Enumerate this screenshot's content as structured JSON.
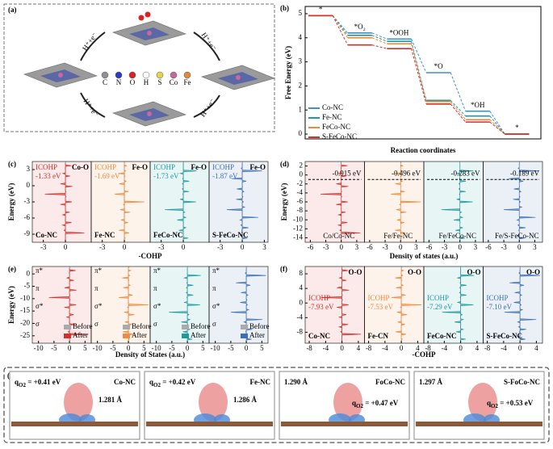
{
  "a": {
    "label": "(a)",
    "atoms": [
      "C",
      "N",
      "O",
      "H",
      "S",
      "Co",
      "Fe"
    ],
    "steps": [
      "H⁺+e⁻",
      "H⁺+e⁻",
      "H⁺+e⁻",
      "H⁺+e⁻"
    ]
  },
  "b": {
    "label": "(b)",
    "ylabel": "Free Energy (eV)",
    "xlabel": "Reaction coordinates",
    "ylim": [
      -0.2,
      5.3
    ],
    "yticks": [
      0,
      1,
      2,
      3,
      4,
      5
    ],
    "states": [
      "*",
      "*O₂",
      "*OOH",
      "*O",
      "*OH",
      "*"
    ],
    "series": [
      {
        "name": "Co-NC",
        "color": "#3f8fcf",
        "values": [
          4.92,
          4.2,
          3.95,
          2.55,
          0.95,
          0
        ]
      },
      {
        "name": "Fe-NC",
        "color": "#1c9aa0",
        "values": [
          4.92,
          4.1,
          3.85,
          1.4,
          0.75,
          0
        ]
      },
      {
        "name": "FeCo-NC",
        "color": "#f08a3c",
        "values": [
          4.92,
          4.0,
          3.75,
          1.35,
          0.6,
          0
        ]
      },
      {
        "name": "S-FeCo-NC",
        "color": "#d4302b",
        "values": [
          4.92,
          3.7,
          3.55,
          1.25,
          0.5,
          0
        ]
      }
    ]
  },
  "c": {
    "label": "(c)",
    "ylabel": "Energy (eV)",
    "xlabel": "-COHP",
    "ylim": [
      -10.5,
      4.5
    ],
    "yticks": [
      3,
      0,
      -3,
      -6,
      -9
    ],
    "sub_xlim": [
      -4.5,
      3.5
    ],
    "subs": [
      {
        "color": "#d4302b",
        "tag": "ICOHP",
        "value": "-1.33 eV",
        "bond": "Co-O",
        "name": "Co-NC",
        "xticks": [
          -3,
          0
        ]
      },
      {
        "color": "#f08a3c",
        "tag": "ICOHP",
        "value": "-1.69 eV",
        "bond": "Fe-O",
        "name": "Fe-NC",
        "xticks": [
          -3,
          0
        ]
      },
      {
        "color": "#1c9aa0",
        "tag": "ICOHP",
        "value": "-1.73 eV",
        "bond": "Fe-O",
        "name": "FeCo-NC",
        "xticks": [
          -3,
          0
        ]
      },
      {
        "color": "#3a6fb5",
        "tag": "ICOHP",
        "value": "-1.87 eV",
        "bond": "Fe-O",
        "name": "S-FeCo-NC",
        "xticks": [
          -3,
          0,
          3
        ]
      }
    ]
  },
  "d": {
    "label": "(d)",
    "ylabel": "Energy (eV)",
    "xlabel": "Density of states (a.u.)",
    "ylim": [
      -15,
      3
    ],
    "yticks": [
      2,
      0,
      -2,
      -4,
      -6,
      -8,
      -10,
      -12,
      -14
    ],
    "sub_xlim": [
      -7,
      4.5
    ],
    "subs": [
      {
        "color": "#d4302b",
        "value": "-0.915 eV",
        "name": "Co/Co-NC",
        "xticks": [
          -6,
          -3,
          0,
          3
        ]
      },
      {
        "color": "#f08a3c",
        "value": "-0.496 eV",
        "name": "Fe/Fe-NC",
        "xticks": [
          -6,
          -3,
          0,
          3
        ]
      },
      {
        "color": "#1c9aa0",
        "value": "-0.283 eV",
        "name": "Fe/FeCo-NC",
        "xticks": [
          -6,
          -3,
          0,
          3
        ]
      },
      {
        "color": "#3a6fb5",
        "value": "-0.189 eV",
        "name": "Fe/S-FeCo-NC",
        "xticks": [
          -6,
          -3,
          0,
          3
        ]
      }
    ]
  },
  "e": {
    "label": "(e)",
    "ylabel": "Energy (eV)",
    "xlabel": "Density of States (a.u.)",
    "ylim": [
      -28,
      3
    ],
    "yticks": [
      0,
      -5,
      -10,
      -15,
      -20,
      -25
    ],
    "sub_xlim": [
      -12,
      7
    ],
    "subs": [
      {
        "color": "#d4302b",
        "orbitals": [
          "π*",
          "π",
          "σ*",
          "σ"
        ],
        "before": "Before",
        "after": "After",
        "xticks": [
          -10,
          -5,
          0,
          5
        ]
      },
      {
        "color": "#f08a3c",
        "orbitals": [
          "π*",
          "π",
          "σ*",
          "σ"
        ],
        "before": "Before",
        "after": "After",
        "xticks": [
          -10,
          -5,
          0,
          5
        ]
      },
      {
        "color": "#1c9aa0",
        "orbitals": [
          "π*",
          "π",
          "σ*",
          "σ"
        ],
        "before": "Before",
        "after": "After",
        "xticks": [
          -10,
          -5,
          0,
          5
        ]
      },
      {
        "color": "#3a6fb5",
        "orbitals": [
          "π*",
          "π",
          "σ*",
          "σ"
        ],
        "before": "Before",
        "after": "After",
        "xticks": [
          -10,
          -5,
          0,
          5
        ]
      }
    ]
  },
  "f": {
    "label": "(f)",
    "xlabel": "-COHP",
    "ylim": [
      -11,
      10
    ],
    "yticks": [
      8,
      4,
      0,
      -4,
      -8
    ],
    "sub_xlim": [
      -9,
      5.5
    ],
    "subs": [
      {
        "color": "#d4302b",
        "tag": "ICOHP",
        "value": "-7.93 eV",
        "bond": "O-O",
        "name": "Co-NC",
        "xticks": [
          -8,
          -4,
          0,
          4
        ]
      },
      {
        "color": "#f08a3c",
        "tag": "ICOHP",
        "value": "-7.53 eV",
        "bond": "O-O",
        "name": "Fe-CN",
        "xticks": [
          -8,
          -4,
          0,
          4
        ]
      },
      {
        "color": "#1c9aa0",
        "tag": "ICOHP",
        "value": "-7.29 eV",
        "bond": "O-O",
        "name": "FeCo-NC",
        "xticks": [
          -8,
          -4,
          0,
          4
        ]
      },
      {
        "color": "#3a6fb5",
        "tag": "ICOHP",
        "value": "-7.10 eV",
        "bond": "O-O",
        "name": "S-FeCo-NC",
        "xticks": [
          -8,
          -4,
          0,
          4
        ]
      }
    ]
  },
  "g": {
    "label": "(g)",
    "subs": [
      {
        "q": "q",
        "sub": "O2",
        "charge": " = +0.41 eV",
        "name": "Co-NC",
        "bond": "1.281 Å"
      },
      {
        "q": "q",
        "sub": "O2",
        "charge": " = +0.42 eV",
        "name": "Fe-NC",
        "bond": "1.286 Å"
      },
      {
        "q": "q",
        "sub": "O2",
        "charge": " = +0.47 eV",
        "name": "FoCo-NC",
        "bond": "1.290 Å"
      },
      {
        "q": "q",
        "sub": "O2",
        "charge": " = +0.53 eV",
        "name": "S-FoCo-NC",
        "bond": "1.297 Å"
      }
    ]
  }
}
